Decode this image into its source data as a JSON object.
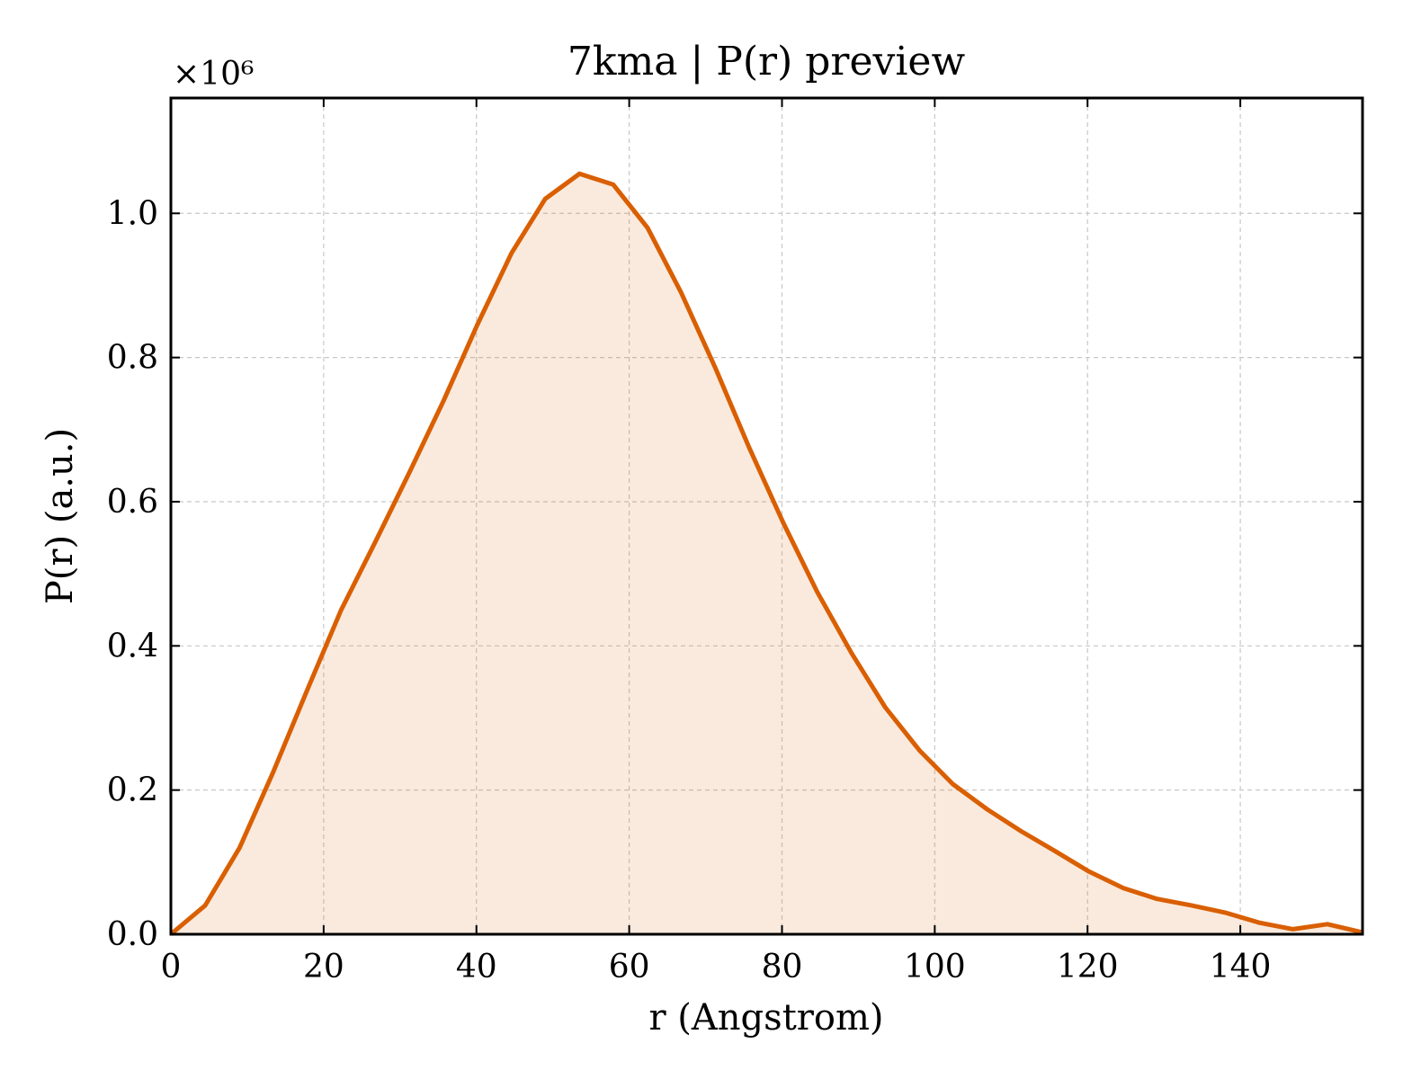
{
  "chart_data": {
    "type": "area",
    "title": "7kma | P(r) preview",
    "xlabel": "r (Angstrom)",
    "ylabel": "P(r) (a.u.)",
    "y_offset_label": "×10⁶",
    "xlim": [
      0,
      156
    ],
    "ylim": [
      0,
      1.16
    ],
    "x_ticks": [
      0,
      20,
      40,
      60,
      80,
      100,
      120,
      140
    ],
    "y_ticks": [
      0.0,
      0.2,
      0.4,
      0.6,
      0.8,
      1.0
    ],
    "x_tick_labels": [
      "0",
      "20",
      "40",
      "60",
      "80",
      "100",
      "120",
      "140"
    ],
    "y_tick_labels": [
      "0.0",
      "0.2",
      "0.4",
      "0.6",
      "0.8",
      "1.0"
    ],
    "grid": true,
    "colors": {
      "line": "#d95f02",
      "fill": "#d95f02"
    },
    "series": [
      {
        "x": [
          0,
          4.5,
          9,
          13.4,
          17.9,
          22.3,
          26.8,
          31.2,
          35.7,
          40.1,
          44.6,
          49,
          53.5,
          57.9,
          62.4,
          66.8,
          71.3,
          75.7,
          80.2,
          84.6,
          89.1,
          93.5,
          98,
          102.4,
          106.9,
          111.3,
          115.8,
          120.2,
          124.7,
          129.1,
          133.6,
          138,
          142.5,
          146.9,
          151.4,
          155.8
        ],
        "y": [
          0.0,
          0.04,
          0.12,
          0.225,
          0.34,
          0.45,
          0.545,
          0.64,
          0.74,
          0.845,
          0.945,
          1.02,
          1.055,
          1.04,
          0.98,
          0.89,
          0.785,
          0.675,
          0.57,
          0.475,
          0.39,
          0.315,
          0.255,
          0.208,
          0.173,
          0.143,
          0.115,
          0.087,
          0.064,
          0.049,
          0.04,
          0.03,
          0.016,
          0.007,
          0.014,
          0.003
        ]
      }
    ]
  }
}
